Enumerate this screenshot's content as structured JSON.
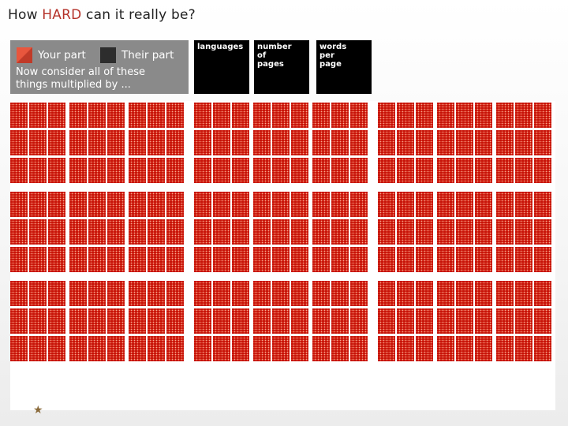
{
  "title": {
    "prefix": "How ",
    "highlight": "HARD",
    "suffix": " can it really be?",
    "highlight_color": "#b5322a"
  },
  "legend": {
    "your_part_label": "Your part",
    "their_part_label": "Their part",
    "your_part_color": "#e8563d",
    "their_part_color": "#2d2d2d",
    "consider_line1": "Now consider all of these",
    "consider_line2": "things multiplied by ..."
  },
  "factors": [
    {
      "lines": [
        "languages"
      ]
    },
    {
      "lines": [
        "number",
        "of",
        "pages"
      ]
    },
    {
      "lines": [
        "words",
        "per",
        "page"
      ]
    }
  ],
  "grid": {
    "cell_color": "#e65840",
    "columns": 9,
    "rows": 9
  },
  "logo_icon": "star-logo-icon"
}
